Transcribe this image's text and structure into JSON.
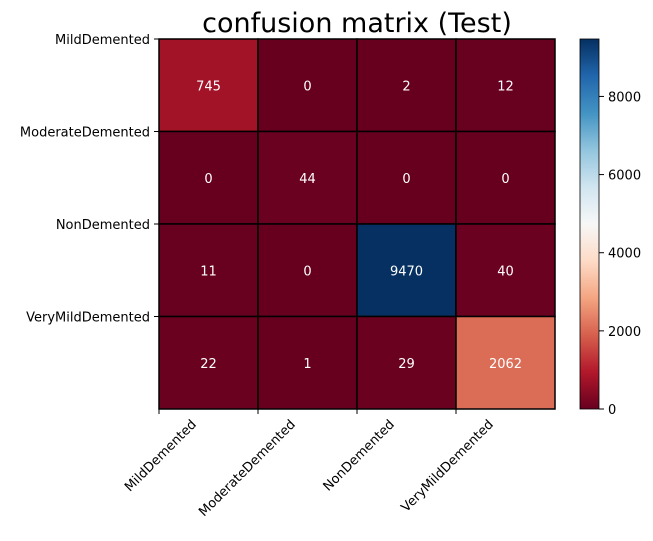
{
  "chart_data": {
    "type": "heatmap",
    "title": "confusion matrix (Test)",
    "row_labels": [
      "MildDemented",
      "ModerateDemented",
      "NonDemented",
      "VeryMildDemented"
    ],
    "col_labels": [
      "MildDemented",
      "ModerateDemented",
      "NonDemented",
      "VeryMildDemented"
    ],
    "values": [
      [
        745,
        0,
        2,
        12
      ],
      [
        0,
        44,
        0,
        0
      ],
      [
        11,
        0,
        9470,
        40
      ],
      [
        22,
        1,
        29,
        2062
      ]
    ],
    "colormap": "RdBu",
    "vmin": 0,
    "vmax": 9470,
    "colorbar_ticks": [
      0,
      2000,
      4000,
      6000,
      8000
    ],
    "grid_color": "#000000",
    "annotation_color": "#ffffff"
  }
}
